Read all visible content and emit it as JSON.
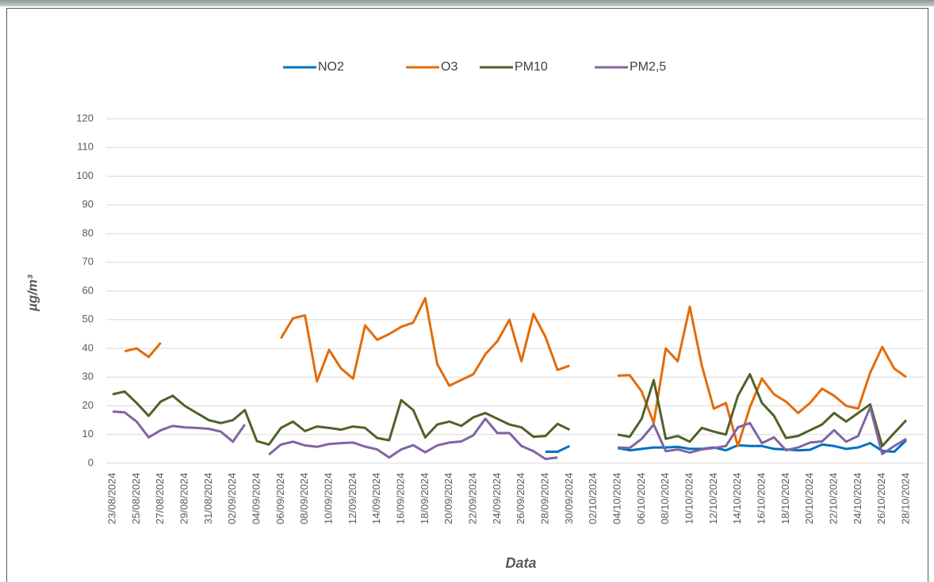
{
  "chart_data": {
    "type": "line",
    "x_label": "Data",
    "y_label": "µg/m³",
    "categories": [
      "23/08/2024",
      null,
      "25/08/2024",
      null,
      "27/08/2024",
      null,
      "29/08/2024",
      null,
      "31/08/2024",
      null,
      "02/09/2024",
      null,
      "04/09/2024",
      null,
      "06/09/2024",
      null,
      "08/09/2024",
      null,
      "10/09/2024",
      null,
      "12/09/2024",
      null,
      "14/09/2024",
      null,
      "16/09/2024",
      null,
      "18/09/2024",
      null,
      "20/09/2024",
      null,
      "22/09/2024",
      null,
      "24/09/2024",
      null,
      "26/09/2024",
      null,
      "28/09/2024",
      null,
      "30/09/2024",
      null,
      "02/10/2024",
      null,
      "04/10/2024",
      null,
      "06/10/2024",
      null,
      "08/10/2024",
      null,
      "10/10/2024",
      null,
      "12/10/2024",
      null,
      "14/10/2024",
      null,
      "16/10/2024",
      null,
      "18/10/2024",
      null,
      "20/10/2024",
      null,
      "22/10/2024",
      null,
      "24/10/2024",
      null,
      "26/10/2024",
      null,
      "28/10/2024"
    ],
    "series": [
      {
        "name": "NO2",
        "color": "#0070c0",
        "values": [
          null,
          null,
          null,
          null,
          null,
          null,
          null,
          null,
          null,
          null,
          null,
          null,
          null,
          null,
          null,
          null,
          null,
          null,
          null,
          null,
          null,
          null,
          null,
          null,
          null,
          null,
          null,
          null,
          null,
          null,
          null,
          null,
          null,
          null,
          null,
          null,
          4,
          4,
          6,
          null,
          null,
          null,
          5.3,
          4.5,
          5,
          5.5,
          5.5,
          5.7,
          5,
          5,
          5.5,
          4.5,
          6.3,
          6,
          6,
          5,
          4.8,
          4.5,
          4.7,
          6.5,
          6,
          5,
          5.5,
          7,
          4.3,
          4,
          8
        ]
      },
      {
        "name": "O3",
        "color": "#e36c09",
        "values": [
          null,
          39,
          40,
          37,
          42,
          null,
          null,
          null,
          null,
          null,
          null,
          null,
          null,
          null,
          43.5,
          50.5,
          51.5,
          28.5,
          39.5,
          33,
          29.5,
          48,
          43,
          45,
          47.5,
          49,
          57.5,
          34.5,
          27,
          29,
          31,
          38,
          42.5,
          50,
          35.5,
          52,
          44,
          32.5,
          34,
          null,
          null,
          null,
          30.5,
          30.7,
          25,
          14,
          40,
          35.5,
          54.5,
          34,
          19,
          21,
          6,
          19.5,
          29.5,
          24,
          21.5,
          17.5,
          21,
          26,
          23.5,
          20,
          19,
          31.5,
          40.5,
          33,
          30
        ]
      },
      {
        "name": "PM10",
        "color": "#4f6228",
        "values": [
          24,
          25,
          21,
          16.5,
          21.5,
          23.5,
          20,
          17.5,
          15,
          14,
          15,
          18.5,
          7.7,
          6.5,
          12.3,
          14.5,
          11.2,
          12.8,
          12.3,
          11.7,
          12.8,
          12.3,
          8.8,
          8,
          22,
          18.5,
          9,
          13.5,
          14.5,
          13,
          16,
          17.5,
          15.5,
          13.5,
          12.5,
          9.2,
          9.5,
          13.7,
          11.7,
          null,
          null,
          null,
          10,
          9.2,
          15.5,
          29,
          8.5,
          9.5,
          7.5,
          12.3,
          11,
          10,
          23.5,
          31,
          21,
          16.5,
          8.8,
          9.5,
          11.5,
          13.5,
          17.5,
          14.5,
          17.5,
          20.5,
          6,
          10.5,
          15
        ]
      },
      {
        "name": "PM2,5",
        "color": "#8064a2",
        "values": [
          18,
          17.7,
          14.5,
          9,
          11.5,
          13,
          12.5,
          12.3,
          12,
          11,
          7.5,
          13.5,
          null,
          3,
          6.5,
          7.5,
          6.2,
          5.7,
          6.7,
          7,
          7.2,
          5.8,
          4.8,
          2,
          4.8,
          6.3,
          3.8,
          6.2,
          7.2,
          7.6,
          9.7,
          15.5,
          10.5,
          10.5,
          6,
          4.2,
          1.5,
          2,
          null,
          null,
          null,
          null,
          5.5,
          5.3,
          8.5,
          13.5,
          4.2,
          4.8,
          3.7,
          4.8,
          5.3,
          6,
          12.5,
          14,
          7,
          9,
          4.5,
          5.5,
          7.2,
          7.6,
          11.5,
          7.5,
          9.5,
          19.5,
          3.2,
          6,
          8.5
        ]
      }
    ],
    "ylim": [
      0,
      120
    ],
    "yticks": [
      0,
      10,
      20,
      30,
      40,
      50,
      60,
      70,
      80,
      90,
      100,
      110,
      120
    ],
    "grid": true,
    "legend": "top"
  }
}
